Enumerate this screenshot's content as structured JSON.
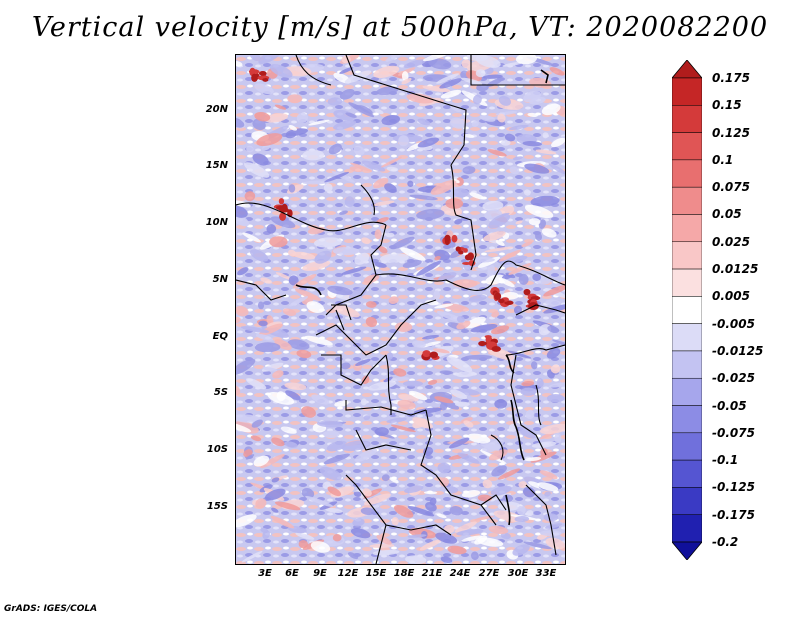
{
  "title": "Vertical velocity [m/s] at 500hPa, VT: 2020082200",
  "credit": "GrADS: IGES/COLA",
  "map": {
    "y_ticks": [
      "20N",
      "15N",
      "10N",
      "5N",
      "EQ",
      "5S",
      "10S",
      "15S"
    ],
    "x_ticks": [
      "3E",
      "6E",
      "9E",
      "12E",
      "15E",
      "18E",
      "21E",
      "24E",
      "27E",
      "30E",
      "33E"
    ]
  },
  "colorbar": {
    "labels": [
      "0.175",
      "0.15",
      "0.125",
      "0.1",
      "0.075",
      "0.05",
      "0.025",
      "0.0125",
      "0.005",
      "-0.005",
      "-0.0125",
      "-0.025",
      "-0.05",
      "-0.075",
      "-0.1",
      "-0.125",
      "-0.175",
      "-0.2"
    ],
    "colors": [
      "#b01c1c",
      "#c52626",
      "#d43a3a",
      "#e05555",
      "#e86f6f",
      "#ef8c8c",
      "#f5a8a8",
      "#f9c7c7",
      "#fbe0e0",
      "#ffffff",
      "#dcdcf7",
      "#c3c3f2",
      "#a6a6ec",
      "#8c8ce5",
      "#7070dc",
      "#5555d2",
      "#3a3ac4",
      "#2020b0",
      "#10109a"
    ]
  }
}
